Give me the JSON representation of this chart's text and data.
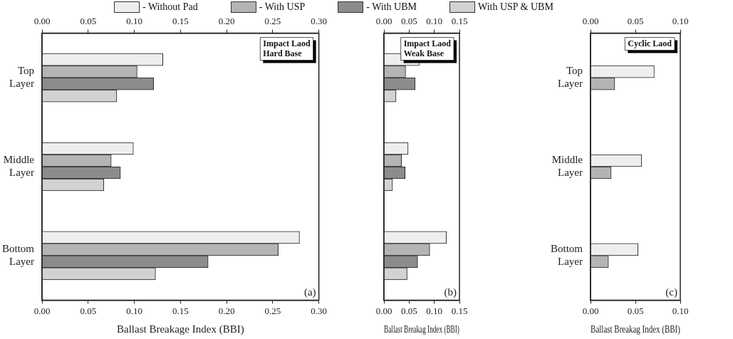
{
  "chart_data": [
    {
      "type": "bar",
      "orientation": "horizontal",
      "categories": [
        "Top Layer",
        "Middle Layer",
        "Bottom Layer"
      ],
      "xlabel": "Ballast Breakage Index (BBI)",
      "legend": "top",
      "grid": false,
      "series": [
        {
          "name": "- Without Pad",
          "color": "#eeeeee",
          "values": [
            0.131,
            0.099,
            0.279
          ]
        },
        {
          "name": "- With USP",
          "color": "#b4b4b4",
          "values": [
            0.103,
            0.075,
            0.256
          ]
        },
        {
          "name": "- With UBM",
          "color": "#8c8c8c",
          "values": [
            0.121,
            0.085,
            0.18
          ]
        },
        {
          "name": "With USP & UBM",
          "color": "#d2d2d2",
          "values": [
            0.081,
            0.067,
            0.123
          ]
        }
      ],
      "xlim": [
        0,
        0.3
      ],
      "xticks": [
        {
          "value": 0,
          "label": "0.00"
        },
        {
          "value": 0.05,
          "label": "0.05"
        },
        {
          "value": 0.1,
          "label": "0.10"
        },
        {
          "value": 0.15,
          "label": "0.15"
        },
        {
          "value": 0.2,
          "label": "0.20"
        },
        {
          "value": 0.25,
          "label": "0.25"
        },
        {
          "value": 0.3,
          "label": "0.30"
        }
      ],
      "x2lim": [
        0,
        0.3
      ],
      "x2ticks": [
        {
          "value": 0,
          "label": "0.00"
        },
        {
          "value": 0.05,
          "label": "0.05"
        },
        {
          "value": 0.1,
          "label": "0.10"
        },
        {
          "value": 0.15,
          "label": "0.15"
        },
        {
          "value": 0.2,
          "label": "0.20"
        },
        {
          "value": 0.25,
          "label": "0.25"
        },
        {
          "value": 0.3,
          "label": "0.30"
        }
      ],
      "annotations": [
        "Impact Laod\nHard Base",
        "(a)"
      ]
    },
    {
      "type": "bar",
      "orientation": "horizontal",
      "categories": [
        null,
        null,
        null
      ],
      "xlabel": "Ballast Breakag Index (BBI)",
      "grid": false,
      "series": [
        {
          "color": "#eeeeee",
          "values": [
            0.07,
            0.048,
            0.124
          ]
        },
        {
          "color": "#b4b4b4",
          "values": [
            0.043,
            0.035,
            0.091
          ]
        },
        {
          "color": "#8c8c8c",
          "values": [
            0.062,
            0.042,
            0.067
          ]
        },
        {
          "color": "#d2d2d2",
          "values": [
            0.024,
            0.017,
            0.046
          ]
        }
      ],
      "xlim": [
        0,
        0.15
      ],
      "xticks": [
        {
          "value": 0,
          "label": "0.00"
        },
        {
          "value": 0.05,
          "label": "0.05"
        },
        {
          "value": 0.1,
          "label": "0.10"
        },
        {
          "value": 0.15,
          "label": "0.15"
        }
      ],
      "x2lim": [
        0,
        0.15
      ],
      "x2ticks": [
        {
          "value": 0,
          "label": "0.00"
        },
        {
          "value": 0.05,
          "label": "0.05"
        },
        {
          "value": 0.1,
          "label": "0.10"
        },
        {
          "value": 0.15,
          "label": "0.15"
        }
      ],
      "annotations": [
        "Impact Laod\nWeak Base",
        "(b)"
      ]
    },
    {
      "type": "bar",
      "orientation": "horizontal",
      "categories": [
        "Top Layer",
        "Middle Layer",
        "Bottom Layer"
      ],
      "xlabel": "Ballast Breakag Index (BBI)",
      "grid": false,
      "series": [
        {
          "color": "#eeeeee",
          "values": [
            0.071,
            0.057,
            0.053
          ]
        },
        {
          "color": "#b4b4b4",
          "values": [
            0.027,
            0.023,
            0.02
          ]
        }
      ],
      "xlim": [
        0,
        0.1
      ],
      "xticks": [
        {
          "value": 0,
          "label": "0.00"
        },
        {
          "value": 0.05,
          "label": "0.05"
        },
        {
          "value": 0.1,
          "label": "0.10"
        }
      ],
      "x2lim": [
        0,
        0.1
      ],
      "x2ticks": [
        {
          "value": 0,
          "label": "0.00"
        },
        {
          "value": 0.05,
          "label": "0.05"
        },
        {
          "value": 0.1,
          "label": "0.10"
        }
      ],
      "annotations": [
        "Cyclic Laod",
        "(c)"
      ]
    }
  ]
}
